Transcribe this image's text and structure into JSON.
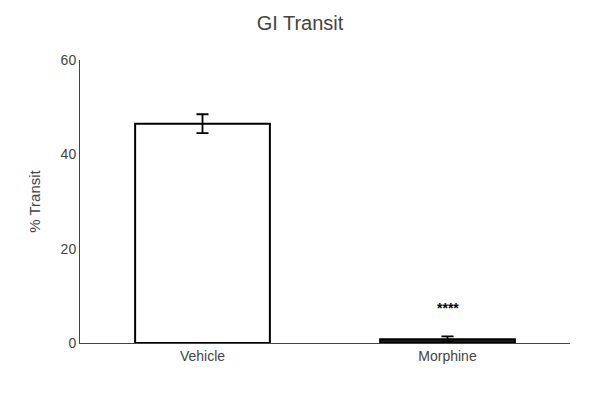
{
  "chart_data": {
    "type": "bar",
    "title": "GI Transit",
    "ylabel": "% Transit",
    "categories": [
      "Vehicle",
      "Morphine"
    ],
    "values": [
      46.5,
      0.8
    ],
    "errors": [
      2.0,
      0.6
    ],
    "colors": [
      "#ffffff",
      "#1a1a1a"
    ],
    "ylim": [
      0,
      60
    ],
    "yticks": [
      0,
      20,
      40,
      60
    ],
    "grid": false,
    "annotations": [
      {
        "text": "****",
        "x": "Morphine",
        "y": 7.5
      }
    ]
  }
}
